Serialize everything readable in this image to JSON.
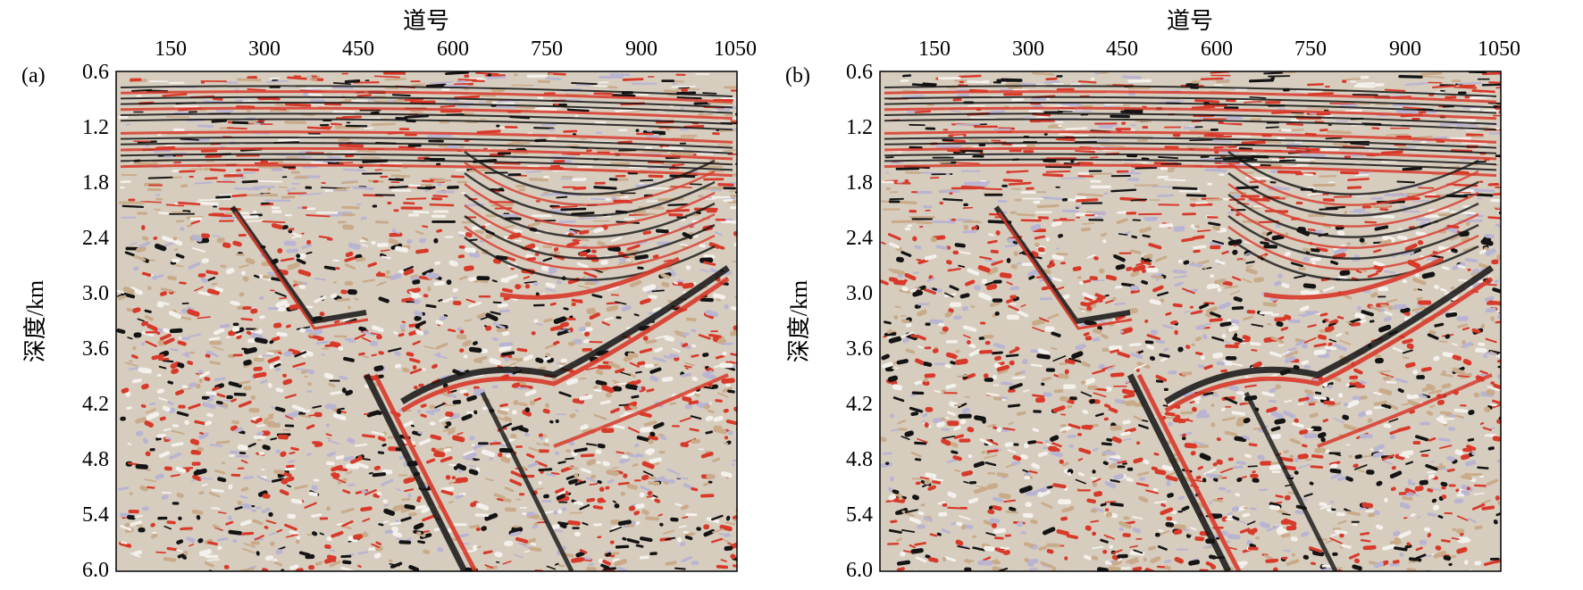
{
  "panels": [
    {
      "label": "(a)",
      "x_axis_title": "道号",
      "y_axis_title": "深度/km",
      "x_ticks": [
        "150",
        "300",
        "450",
        "600",
        "750",
        "900",
        "1050"
      ],
      "y_ticks": [
        "0.6",
        "1.2",
        "1.8",
        "2.4",
        "3.0",
        "3.6",
        "4.2",
        "4.8",
        "5.4",
        "6.0"
      ]
    },
    {
      "label": "(b)",
      "x_axis_title": "道号",
      "y_axis_title": "深度/km",
      "x_ticks": [
        "150",
        "300",
        "450",
        "600",
        "750",
        "900",
        "1050"
      ],
      "y_ticks": [
        "0.6",
        "1.2",
        "1.8",
        "2.4",
        "3.0",
        "3.6",
        "4.2",
        "4.8",
        "5.4",
        "6.0"
      ]
    }
  ],
  "colors": {
    "red": "#d83a2a",
    "black": "#141414",
    "tan": "#c9ab8a",
    "lavender": "#b9b4d2",
    "white": "#f4f1ec"
  }
}
